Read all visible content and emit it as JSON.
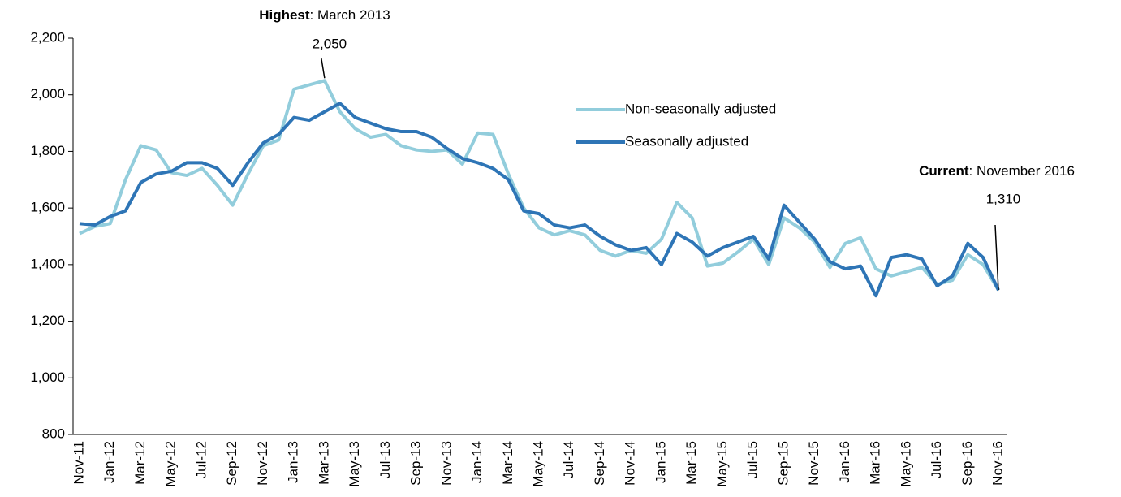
{
  "chart_data": {
    "type": "line",
    "categories": [
      "Nov-11",
      null,
      "Jan-12",
      null,
      "Mar-12",
      null,
      "May-12",
      null,
      "Jul-12",
      null,
      "Sep-12",
      null,
      "Nov-12",
      null,
      "Jan-13",
      null,
      "Mar-13",
      null,
      "May-13",
      null,
      "Jul-13",
      null,
      "Sep-13",
      null,
      "Nov-13",
      null,
      "Jan-14",
      null,
      "Mar-14",
      null,
      "May-14",
      null,
      "Jul-14",
      null,
      "Sep-14",
      null,
      "Nov-14",
      null,
      "Jan-15",
      null,
      "Mar-15",
      null,
      "May-15",
      null,
      "Jul-15",
      null,
      "Sep-15",
      null,
      "Nov-15",
      null,
      "Jan-16",
      null,
      "Mar-16",
      null,
      "May-16",
      null,
      "Jul-16",
      null,
      "Sep-16",
      null,
      "Nov-16"
    ],
    "series": [
      {
        "name": "Non-seasonally adjusted",
        "color": "#92cddc",
        "values": [
          1510,
          1535,
          1545,
          1700,
          1820,
          1805,
          1725,
          1715,
          1740,
          1680,
          1610,
          1720,
          1820,
          1840,
          2020,
          2035,
          2050,
          1940,
          1880,
          1850,
          1860,
          1820,
          1805,
          1800,
          1805,
          1755,
          1865,
          1860,
          1720,
          1600,
          1530,
          1505,
          1520,
          1505,
          1450,
          1430,
          1450,
          1440,
          1490,
          1620,
          1565,
          1395,
          1405,
          1445,
          1490,
          1400,
          1565,
          1530,
          1480,
          1390,
          1475,
          1495,
          1385,
          1360,
          1375,
          1390,
          1330,
          1345,
          1435,
          1400,
          1310
        ]
      },
      {
        "name": "Seasonally adjusted",
        "color": "#2e75b6",
        "values": [
          1545,
          1540,
          1570,
          1590,
          1690,
          1720,
          1730,
          1760,
          1760,
          1740,
          1680,
          1760,
          1830,
          1860,
          1920,
          1910,
          1940,
          1970,
          1920,
          1900,
          1880,
          1870,
          1870,
          1850,
          1810,
          1775,
          1760,
          1740,
          1700,
          1590,
          1580,
          1540,
          1530,
          1540,
          1500,
          1470,
          1450,
          1460,
          1400,
          1510,
          1480,
          1430,
          1460,
          1480,
          1500,
          1420,
          1610,
          1550,
          1490,
          1410,
          1385,
          1395,
          1290,
          1425,
          1435,
          1420,
          1325,
          1360,
          1475,
          1425,
          1310
        ]
      }
    ],
    "ylim": [
      800,
      2200
    ],
    "yticks": [
      800,
      {
        "value": 1000,
        "label": "1,000"
      },
      {
        "value": 1200,
        "label": "1,200"
      },
      {
        "value": 1400,
        "label": "1,400"
      },
      {
        "value": 1600,
        "label": "1,600"
      },
      {
        "value": 1800,
        "label": "1,800"
      },
      {
        "value": 2000,
        "label": "2,000"
      },
      {
        "value": 2200,
        "label": "2,200"
      }
    ],
    "grid": false,
    "legend": "upper center",
    "annotations": [
      {
        "bold": "Highest",
        "text": ": March 2013",
        "value": 2050,
        "value_label": "2,050"
      },
      {
        "bold": "Current",
        "text": ": November 2016",
        "value": 1310,
        "value_label": "1,310"
      }
    ]
  }
}
